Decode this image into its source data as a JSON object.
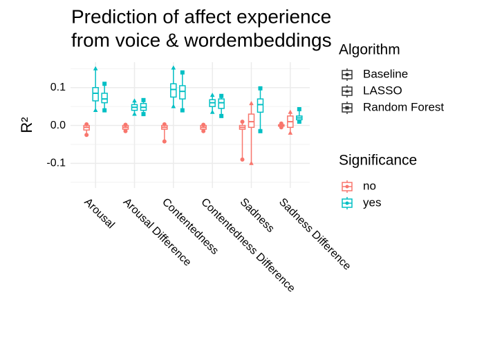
{
  "chart_data": {
    "type": "box",
    "title": [
      "Prediction of affect experience",
      "from voice & wordembeddings"
    ],
    "y_label": "R²",
    "categories": [
      "Arousal",
      "Arousal Difference",
      "Contentedness",
      "Contentedness Difference",
      "Sadness",
      "Sadness Difference"
    ],
    "ylim": [
      -0.165,
      0.167
    ],
    "yticks": [
      -0.1,
      {
        "value": 0,
        "label": "0.0"
      },
      0.1
    ],
    "yminor": [
      -0.15,
      -0.05,
      0.05,
      0.15
    ],
    "grid": true,
    "algorithm_title": "Algorithm",
    "significance_title": "Significance",
    "significance_levels": [
      {
        "name": "no",
        "color": "#F8766D"
      },
      {
        "name": "yes",
        "color": "#00BFC4"
      }
    ],
    "series": [
      {
        "name": "Baseline",
        "shape": "circle",
        "significance": [
          "no",
          "no",
          "no",
          "no",
          "no",
          "no"
        ],
        "values": [
          {
            "min": -0.025,
            "q1": -0.012,
            "median": -0.005,
            "q3": 0.0,
            "max": 0.003
          },
          {
            "min": -0.015,
            "q1": -0.01,
            "median": -0.005,
            "q3": 0.0,
            "max": 0.002
          },
          {
            "min": -0.042,
            "q1": -0.01,
            "median": -0.005,
            "q3": 0.0,
            "max": 0.003
          },
          {
            "min": -0.015,
            "q1": -0.01,
            "median": -0.005,
            "q3": 0.0,
            "max": 0.002
          },
          {
            "min": -0.09,
            "q1": -0.01,
            "median": -0.005,
            "q3": 0.0,
            "max": 0.01
          },
          {
            "min": -0.005,
            "q1": -0.002,
            "median": 0.0,
            "q3": 0.002,
            "max": 0.005
          }
        ]
      },
      {
        "name": "LASSO",
        "shape": "triangle",
        "significance": [
          "yes",
          "yes",
          "yes",
          "yes",
          "no",
          "no"
        ],
        "values": [
          {
            "min": 0.04,
            "q1": 0.065,
            "median": 0.085,
            "q3": 0.1,
            "max": 0.15
          },
          {
            "min": 0.03,
            "q1": 0.04,
            "median": 0.048,
            "q3": 0.055,
            "max": 0.065
          },
          {
            "min": 0.05,
            "q1": 0.075,
            "median": 0.095,
            "q3": 0.11,
            "max": 0.152
          },
          {
            "min": 0.035,
            "q1": 0.05,
            "median": 0.06,
            "q3": 0.068,
            "max": 0.08
          },
          {
            "min": -0.1,
            "q1": -0.005,
            "median": 0.01,
            "q3": 0.03,
            "max": 0.058
          },
          {
            "min": -0.02,
            "q1": -0.005,
            "median": 0.01,
            "q3": 0.025,
            "max": 0.035
          }
        ]
      },
      {
        "name": "Random Forest",
        "shape": "square",
        "significance": [
          "yes",
          "yes",
          "yes",
          "yes",
          "yes",
          "yes"
        ],
        "values": [
          {
            "min": 0.04,
            "q1": 0.06,
            "median": 0.07,
            "q3": 0.085,
            "max": 0.11
          },
          {
            "min": 0.03,
            "q1": 0.04,
            "median": 0.048,
            "q3": 0.058,
            "max": 0.067
          },
          {
            "min": 0.04,
            "q1": 0.07,
            "median": 0.09,
            "q3": 0.105,
            "max": 0.14
          },
          {
            "min": 0.025,
            "q1": 0.045,
            "median": 0.06,
            "q3": 0.07,
            "max": 0.078
          },
          {
            "min": -0.015,
            "q1": 0.035,
            "median": 0.055,
            "q3": 0.07,
            "max": 0.098
          },
          {
            "min": 0.01,
            "q1": 0.015,
            "median": 0.02,
            "q3": 0.025,
            "max": 0.043
          }
        ]
      }
    ]
  }
}
